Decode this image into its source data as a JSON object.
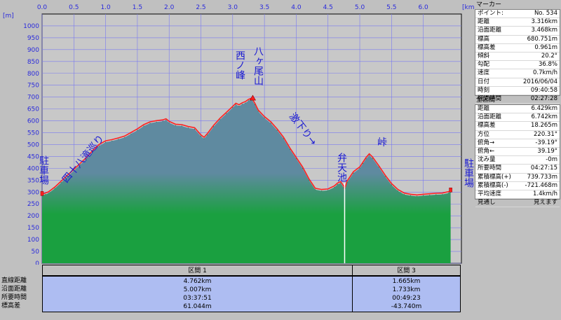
{
  "chart_data": {
    "type": "area",
    "xlabel": "[km]",
    "ylabel": "[m]",
    "xlim": [
      0,
      6.6
    ],
    "ylim": [
      0,
      1050
    ],
    "x_ticks": [
      "0.0",
      "0.5",
      "1.0",
      "1.5",
      "2.0",
      "2.5",
      "3.0",
      "3.5",
      "4.0",
      "4.5",
      "5.0",
      "5.5",
      "6.0"
    ],
    "y_ticks": [
      "0",
      "50",
      "100",
      "150",
      "200",
      "250",
      "300",
      "350",
      "400",
      "450",
      "500",
      "550",
      "600",
      "650",
      "700",
      "750",
      "800",
      "850",
      "900",
      "950",
      "1000"
    ],
    "grid": true,
    "fill_color": "#1aa040",
    "fill_top_color": "#5f8aa0",
    "line_color": "#ff2020",
    "series": [
      {
        "x": [
          0.0,
          0.05,
          0.1,
          0.2,
          0.3,
          0.4,
          0.5,
          0.6,
          0.7,
          0.8,
          0.9,
          1.0,
          1.1,
          1.2,
          1.3,
          1.4,
          1.5,
          1.6,
          1.7,
          1.8,
          1.9,
          1.95,
          2.0,
          2.1,
          2.2,
          2.3,
          2.4,
          2.5,
          2.55,
          2.6,
          2.7,
          2.8,
          2.9,
          3.0,
          3.05,
          3.1,
          3.15,
          3.2,
          3.25,
          3.3,
          3.35,
          3.4,
          3.5,
          3.6,
          3.7,
          3.8,
          3.9,
          4.0,
          4.1,
          4.2,
          4.3,
          4.4,
          4.5,
          4.6,
          4.65,
          4.7,
          4.75,
          4.76,
          4.77,
          4.8,
          4.9,
          5.0,
          5.05,
          5.1,
          5.15,
          5.2,
          5.3,
          5.4,
          5.5,
          5.6,
          5.7,
          5.8,
          5.9,
          6.0,
          6.1,
          6.2,
          6.3,
          6.4,
          6.43
        ],
        "y": [
          285,
          290,
          295,
          315,
          340,
          365,
          390,
          415,
          440,
          470,
          495,
          510,
          515,
          522,
          530,
          545,
          560,
          578,
          590,
          595,
          598,
          603,
          592,
          580,
          578,
          570,
          565,
          535,
          525,
          540,
          575,
          605,
          630,
          655,
          668,
          662,
          670,
          675,
          685,
          690,
          668,
          640,
          612,
          590,
          560,
          525,
          480,
          440,
          400,
          350,
          310,
          305,
          307,
          320,
          332,
          338,
          318,
          305,
          315,
          340,
          380,
          400,
          420,
          440,
          455,
          442,
          405,
          365,
          330,
          305,
          290,
          285,
          282,
          285,
          287,
          289,
          290,
          296,
          300
        ]
      }
    ],
    "annotations": [
      {
        "id": "parking-start",
        "text": "駐車場",
        "x": 0.0
      },
      {
        "id": "shijuhachi",
        "text": "四十八滝巡り",
        "x": 0.7
      },
      {
        "id": "nishinomine",
        "text": "西ノ峰",
        "x": 2.95
      },
      {
        "id": "hakkeoyama",
        "text": "八ヶ尾山",
        "x": 3.3
      },
      {
        "id": "kyukudari",
        "text": "激下り→",
        "x": 3.95
      },
      {
        "id": "bentenike",
        "text": "弁天池",
        "x": 4.6
      },
      {
        "id": "toge",
        "text": "峠",
        "x": 5.1
      },
      {
        "id": "parking-end",
        "text": "駐車場",
        "x": 6.4
      }
    ],
    "section_divider_x": 4.762
  },
  "section_table": {
    "row_labels": [
      "直線距離",
      "沿面距離",
      "所要時間",
      "標高差"
    ],
    "sections": [
      {
        "title": "区間 1",
        "values": [
          "4.762km",
          "5.007km",
          "03:37:51",
          "61.044m"
        ]
      },
      {
        "title": "区間 3",
        "values": [
          "1.665km",
          "1.733km",
          "00:49:23",
          "-43.740m"
        ]
      }
    ]
  },
  "marker_panel": {
    "title": "マーカー",
    "rows": [
      {
        "k": "ポイント:",
        "v": "No. 534"
      },
      {
        "k": "距離",
        "v": "3.316km"
      },
      {
        "k": "沿面距離",
        "v": "3.468km"
      },
      {
        "k": "標高",
        "v": "680.751m"
      },
      {
        "k": "標高差",
        "v": "0.961m"
      },
      {
        "k": "傾斜",
        "v": "20.2°"
      },
      {
        "k": "勾配",
        "v": "36.8%"
      },
      {
        "k": "速度",
        "v": "0.7km/h"
      },
      {
        "k": "日付",
        "v": "2016/06/04"
      },
      {
        "k": "時刻",
        "v": "09:40:58"
      },
      {
        "k": "経過時間",
        "v": "02:27:28"
      }
    ]
  },
  "total_panel": {
    "title": "全区間",
    "rows": [
      {
        "k": "距離",
        "v": "6.429km"
      },
      {
        "k": "沿面距離",
        "v": "6.742km"
      },
      {
        "k": "標高差",
        "v": "18.265m"
      },
      {
        "k": "方位",
        "v": "220.31°"
      },
      {
        "k": "俯角→",
        "v": "-39.19°"
      },
      {
        "k": "俯角←",
        "v": "39.19°"
      },
      {
        "k": "沈み量",
        "v": "-0m"
      },
      {
        "k": "所要時間",
        "v": "04:27:15"
      },
      {
        "k": "累積標高(+)",
        "v": "739.733m"
      },
      {
        "k": "累積標高(-)",
        "v": "-721.468m"
      },
      {
        "k": "平均速度",
        "v": "1.4km/h"
      },
      {
        "k": "見通し",
        "v": "見えます"
      }
    ]
  }
}
